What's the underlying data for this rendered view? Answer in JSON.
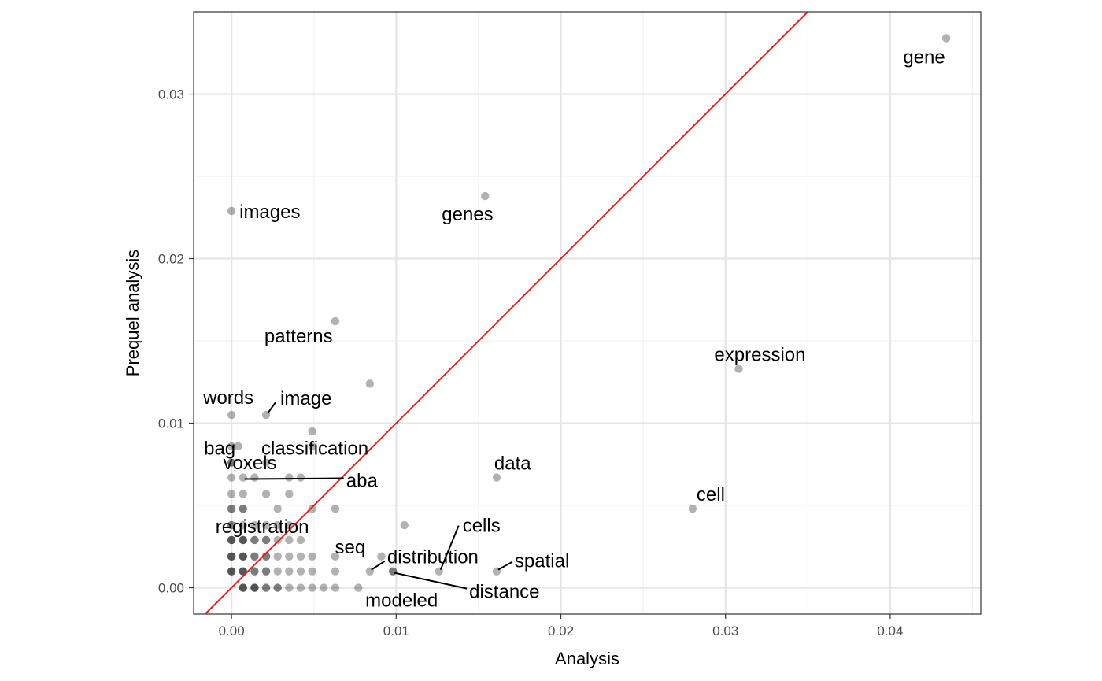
{
  "chart_data": {
    "type": "scatter",
    "xlabel": "Analysis",
    "ylabel": "Prequel analysis",
    "xlim": [
      -0.0023,
      0.0455
    ],
    "ylim": [
      -0.0016,
      0.035
    ],
    "x_ticks": [
      0.0,
      0.01,
      0.02,
      0.03,
      0.04
    ],
    "x_tick_labels": [
      "0.00",
      "0.01",
      "0.02",
      "0.03",
      "0.04"
    ],
    "y_ticks": [
      0.0,
      0.01,
      0.02,
      0.03
    ],
    "y_tick_labels": [
      "0.00",
      "0.01",
      "0.02",
      "0.03"
    ],
    "grid": true,
    "colors": {
      "point": "#000000",
      "point_opacity": 0.3,
      "reference_line": "#ee1c1c",
      "grid_major": "#e5e5e5",
      "grid_minor": "#f2f2f2",
      "panel_border": "#333333"
    },
    "reference_line": {
      "type": "y=x"
    },
    "labeled_points": [
      {
        "label": "gene",
        "x": 0.0434,
        "y": 0.0334
      },
      {
        "label": "images",
        "x": 0.0,
        "y": 0.0229
      },
      {
        "label": "genes",
        "x": 0.0154,
        "y": 0.0238
      },
      {
        "label": "patterns",
        "x": 0.0063,
        "y": 0.0162
      },
      {
        "label": "expression",
        "x": 0.0308,
        "y": 0.0133
      },
      {
        "label": "words",
        "x": 0.0,
        "y": 0.0105
      },
      {
        "label": "image",
        "x": 0.0021,
        "y": 0.0105
      },
      {
        "label": "voxels",
        "x": 0.0004,
        "y": 0.0086
      },
      {
        "label": "bag",
        "x": 0.0,
        "y": 0.0076
      },
      {
        "label": "classification",
        "x": 0.0021,
        "y": 0.0076
      },
      {
        "label": "aba",
        "x": 0.0007,
        "y": 0.0067
      },
      {
        "label": "registration",
        "x": 0.0007,
        "y": 0.0048
      },
      {
        "label": "data",
        "x": 0.0161,
        "y": 0.0067
      },
      {
        "label": "cell",
        "x": 0.028,
        "y": 0.0048
      },
      {
        "label": "cells",
        "x": 0.0126,
        "y": 0.001
      },
      {
        "label": "seq",
        "x": 0.0091,
        "y": 0.0019
      },
      {
        "label": "distribution",
        "x": 0.0084,
        "y": 0.001
      },
      {
        "label": "spatial",
        "x": 0.0161,
        "y": 0.001
      },
      {
        "label": "distance",
        "x": 0.0098,
        "y": 0.001
      },
      {
        "label": "modeled",
        "x": 0.0098,
        "y": 0.001
      }
    ],
    "other_points": [
      [
        0.0084,
        0.0124
      ],
      [
        0.0049,
        0.0095
      ],
      [
        0.0049,
        0.0086
      ],
      [
        0.0,
        0.0086
      ],
      [
        0.0,
        0.0067
      ],
      [
        0.0014,
        0.0067
      ],
      [
        0.0035,
        0.0067
      ],
      [
        0.0042,
        0.0067
      ],
      [
        0.0,
        0.0057
      ],
      [
        0.0007,
        0.0057
      ],
      [
        0.0021,
        0.0057
      ],
      [
        0.0035,
        0.0057
      ],
      [
        0.0,
        0.0048
      ],
      [
        0.0028,
        0.0048
      ],
      [
        0.0049,
        0.0048
      ],
      [
        0.0063,
        0.0048
      ],
      [
        0.0,
        0.0038
      ],
      [
        0.0007,
        0.0038
      ],
      [
        0.0014,
        0.0038
      ],
      [
        0.0021,
        0.0038
      ],
      [
        0.0028,
        0.0038
      ],
      [
        0.0035,
        0.0038
      ],
      [
        0.0105,
        0.0038
      ],
      [
        0.0,
        0.0029
      ],
      [
        0.0007,
        0.0029
      ],
      [
        0.0014,
        0.0029
      ],
      [
        0.0021,
        0.0029
      ],
      [
        0.0028,
        0.0029
      ],
      [
        0.0035,
        0.0029
      ],
      [
        0.0042,
        0.0029
      ],
      [
        0.0,
        0.0019
      ],
      [
        0.0007,
        0.0019
      ],
      [
        0.0014,
        0.0019
      ],
      [
        0.0021,
        0.0019
      ],
      [
        0.0028,
        0.0019
      ],
      [
        0.0035,
        0.0019
      ],
      [
        0.0042,
        0.0019
      ],
      [
        0.0049,
        0.0019
      ],
      [
        0.0063,
        0.0019
      ],
      [
        0.0,
        0.001
      ],
      [
        0.0007,
        0.001
      ],
      [
        0.0014,
        0.001
      ],
      [
        0.0021,
        0.001
      ],
      [
        0.0028,
        0.001
      ],
      [
        0.0035,
        0.001
      ],
      [
        0.0042,
        0.001
      ],
      [
        0.0049,
        0.001
      ],
      [
        0.0063,
        0.001
      ],
      [
        0.0007,
        0.0
      ],
      [
        0.0014,
        0.0
      ],
      [
        0.0021,
        0.0
      ],
      [
        0.0028,
        0.0
      ],
      [
        0.0035,
        0.0
      ],
      [
        0.0042,
        0.0
      ],
      [
        0.0049,
        0.0
      ],
      [
        0.0056,
        0.0
      ],
      [
        0.0063,
        0.0
      ],
      [
        0.0077,
        0.0
      ],
      [
        0.0007,
        0.0
      ],
      [
        0.0014,
        0.0
      ],
      [
        0.0021,
        0.0
      ],
      [
        0.0028,
        0.0
      ],
      [
        0.0,
        0.001
      ],
      [
        0.0007,
        0.001
      ],
      [
        0.0014,
        0.001
      ],
      [
        0.0021,
        0.001
      ],
      [
        0.0,
        0.0019
      ],
      [
        0.0007,
        0.0019
      ],
      [
        0.0014,
        0.0019
      ],
      [
        0.0021,
        0.0019
      ],
      [
        0.0,
        0.0029
      ],
      [
        0.0007,
        0.0029
      ],
      [
        0.0014,
        0.0029
      ],
      [
        0.0021,
        0.0029
      ],
      [
        0.0,
        0.0038
      ],
      [
        0.0,
        0.0048
      ],
      [
        0.0007,
        0.0048
      ],
      [
        0.0,
        0.0076
      ],
      [
        0.0007,
        0.0
      ],
      [
        0.0014,
        0.0
      ],
      [
        0.0,
        0.001
      ],
      [
        0.0007,
        0.001
      ],
      [
        0.0,
        0.0019
      ],
      [
        0.0007,
        0.0019
      ],
      [
        0.0,
        0.0029
      ],
      [
        0.0007,
        0.0029
      ]
    ]
  }
}
